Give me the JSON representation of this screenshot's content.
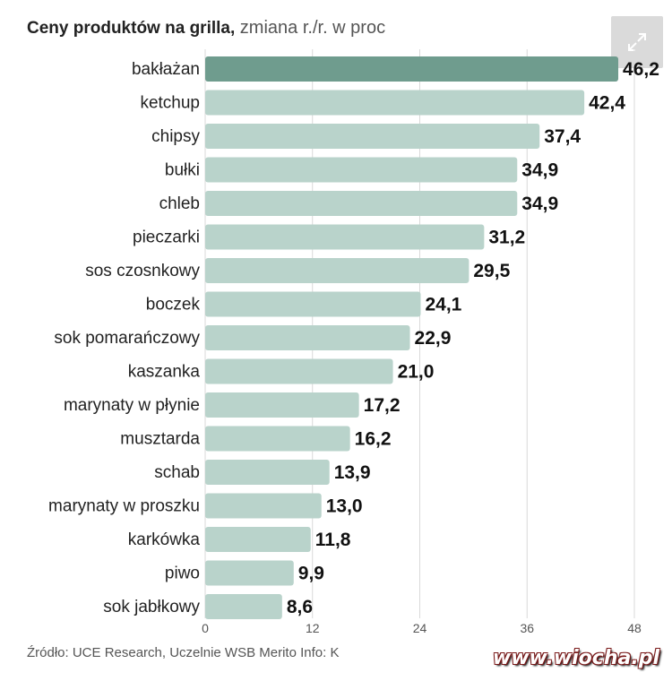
{
  "title_bold": "Ceny produktów na grilla,",
  "title_rest": " zmiana r./r. w proc",
  "expand_icon": "expand-arrows-icon",
  "source": "Źródło: UCE Research, Uczelnie WSB Merito  Info: K",
  "watermark": "www.wiocha.pl",
  "colors": {
    "highlight": "#6f9c8e",
    "bar": "#b9d3cb",
    "grid": "#d9d9d9",
    "label": "#222222",
    "value": "#111111"
  },
  "chart_data": {
    "type": "bar",
    "orientation": "horizontal",
    "categories": [
      "bakłażan",
      "ketchup",
      "chipsy",
      "bułki",
      "chleb",
      "pieczarki",
      "sos czosnkowy",
      "boczek",
      "sok pomarańczowy",
      "kaszanka",
      "marynaty w płynie",
      "musztarda",
      "schab",
      "marynaty w proszku",
      "karkówka",
      "piwo",
      "sok jabłkowy"
    ],
    "values": [
      46.2,
      42.4,
      37.4,
      34.9,
      34.9,
      31.2,
      29.5,
      24.1,
      22.9,
      21.0,
      17.2,
      16.2,
      13.9,
      13.0,
      11.8,
      9.9,
      8.6
    ],
    "value_labels": [
      "46,2",
      "42,4",
      "37,4",
      "34,9",
      "34,9",
      "31,2",
      "29,5",
      "24,1",
      "22,9",
      "21,0",
      "17,2",
      "16,2",
      "13,9",
      "13,0",
      "11,8",
      "9,9",
      "8,6"
    ],
    "highlighted_index": 0,
    "xticks": [
      "0",
      "12",
      "24",
      "36",
      "48"
    ],
    "xtick_values": [
      0,
      12,
      24,
      36,
      48
    ],
    "xlim": [
      0,
      48
    ],
    "grid": true
  }
}
